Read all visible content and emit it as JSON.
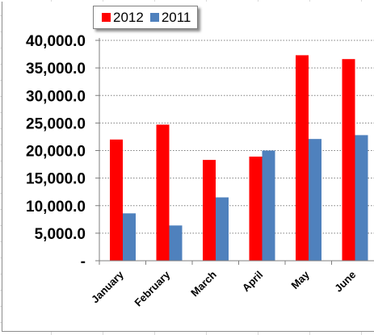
{
  "chart_data": {
    "type": "bar",
    "categories": [
      "January",
      "February",
      "March",
      "April",
      "May",
      "June"
    ],
    "series": [
      {
        "name": "2012",
        "color": "#ff0000",
        "values": [
          22000,
          24700,
          18300,
          18900,
          37300,
          36600
        ]
      },
      {
        "name": "2011",
        "color": "#4f81bd",
        "values": [
          8600,
          6400,
          11500,
          20000,
          22100,
          22800
        ]
      }
    ],
    "ylim": [
      0,
      40000
    ],
    "yticks": [
      0,
      5000,
      10000,
      15000,
      20000,
      25000,
      30000,
      35000,
      40000
    ],
    "ytick_labels": [
      "-",
      "5,000.0",
      "10,000.0",
      "15,000.0",
      "20,000.0",
      "25,000.0",
      "30,000.0",
      "35,000.0",
      "40,000.0"
    ],
    "xlabel": "",
    "ylabel": "",
    "grid": "horizontal-dotted",
    "legend_position": "top-left"
  }
}
